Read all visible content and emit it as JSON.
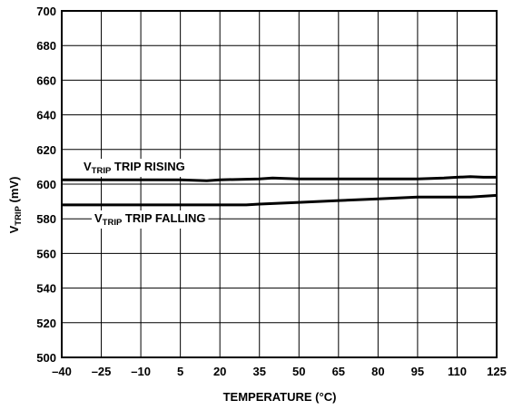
{
  "chart_data": {
    "type": "line",
    "title": "",
    "xlabel": "TEMPERATURE (°C)",
    "ylabel": {
      "main": "V",
      "sub": "TRIP",
      "suffix": " (mV)"
    },
    "xlim": [
      -40,
      125
    ],
    "ylim": [
      500,
      700
    ],
    "x_ticks": [
      -40,
      -25,
      -10,
      5,
      20,
      35,
      50,
      65,
      80,
      95,
      110,
      125
    ],
    "x_tick_labels": [
      "–40",
      "–25",
      "–10",
      "5",
      "20",
      "35",
      "50",
      "65",
      "80",
      "95",
      "110",
      "125"
    ],
    "y_ticks": [
      500,
      520,
      540,
      560,
      580,
      600,
      620,
      640,
      660,
      680,
      700
    ],
    "y_tick_labels": [
      "500",
      "520",
      "540",
      "560",
      "580",
      "600",
      "620",
      "640",
      "660",
      "680",
      "700"
    ],
    "grid": true,
    "legend": "none",
    "series": [
      {
        "name": "V_TRIP TRIP RISING",
        "x": [
          -40,
          -25,
          -10,
          5,
          15,
          20,
          35,
          40,
          50,
          65,
          80,
          95,
          105,
          110,
          115,
          120,
          125
        ],
        "values": [
          602.5,
          602.5,
          602.5,
          602.5,
          602,
          602.5,
          603,
          603.5,
          603,
          603,
          603,
          603,
          603.5,
          604,
          604.3,
          604,
          604
        ]
      },
      {
        "name": "V_TRIP TRIP FALLING",
        "x": [
          -40,
          -25,
          -10,
          5,
          20,
          30,
          35,
          50,
          65,
          80,
          95,
          110,
          115,
          125
        ],
        "values": [
          588,
          588,
          588,
          588,
          588,
          588,
          588.5,
          589.5,
          590.5,
          591.5,
          592.5,
          592.5,
          592.5,
          593.5
        ]
      }
    ],
    "annotations": [
      {
        "main": "V",
        "sub": "TRIP",
        "text": " TRIP RISING"
      },
      {
        "main": "V",
        "sub": "TRIP",
        "text": " TRIP FALLING"
      }
    ]
  }
}
